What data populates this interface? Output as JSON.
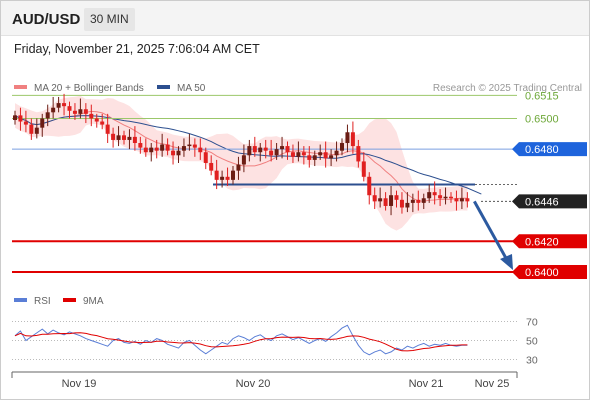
{
  "header": {
    "symbol": "AUD/USD",
    "timeframe": "30 MIN",
    "timestamp": "Friday, November 21, 2025 7:06:04 AM CET"
  },
  "colors": {
    "up": "#6b1d14",
    "down": "#e02020",
    "bollinger_line": "#f08080",
    "bollinger_fill": "#fde2e2",
    "ma50": "#2c4f8f",
    "resistance": "#9bc76a",
    "pivot_line": "#7a9fe0",
    "pivot_label": "#1e64dc",
    "support": "#e00000",
    "current": "#222222",
    "arrow": "#2c5aa0",
    "rsi": "#5a7ed6",
    "rsi_ma": "#e00000"
  },
  "chart_data": {
    "type": "candlestick",
    "legend": [
      {
        "name": "MA 20 + Bollinger Bands",
        "color": "#f08080"
      },
      {
        "name": "MA 50",
        "color": "#2c4f8f"
      }
    ],
    "credit": "Research © 2025 Trading Central",
    "y_range": [
      0.6385,
      0.6527
    ],
    "x_labels": [
      "Nov 19",
      "Nov 20",
      "Nov 21",
      "Nov 25"
    ],
    "price_levels": [
      {
        "value": 0.6515,
        "label": "0.6515",
        "kind": "resistance"
      },
      {
        "value": 0.65,
        "label": "0.6500",
        "kind": "resistance"
      },
      {
        "value": 0.648,
        "label": "0.6480",
        "kind": "pivot"
      },
      {
        "value": 0.6446,
        "label": "0.6446",
        "kind": "current"
      },
      {
        "value": 0.642,
        "label": "0.6420",
        "kind": "support"
      },
      {
        "value": 0.64,
        "label": "0.6400",
        "kind": "support"
      }
    ],
    "pivot_segment_value": 0.6457,
    "candles_close": [
      0.6502,
      0.6498,
      0.6496,
      0.649,
      0.6494,
      0.65,
      0.6504,
      0.6507,
      0.651,
      0.6508,
      0.6505,
      0.6503,
      0.6506,
      0.6503,
      0.65,
      0.6498,
      0.6496,
      0.649,
      0.6486,
      0.6489,
      0.6486,
      0.6488,
      0.6484,
      0.6481,
      0.6478,
      0.6481,
      0.6479,
      0.6483,
      0.6479,
      0.6476,
      0.6479,
      0.6482,
      0.6483,
      0.6481,
      0.6478,
      0.6471,
      0.6466,
      0.646,
      0.6462,
      0.646,
      0.6466,
      0.647,
      0.6476,
      0.6482,
      0.6478,
      0.6481,
      0.6479,
      0.6476,
      0.648,
      0.6482,
      0.6478,
      0.6475,
      0.6478,
      0.6476,
      0.6473,
      0.6476,
      0.6478,
      0.6474,
      0.6476,
      0.6479,
      0.6484,
      0.6491,
      0.6482,
      0.6472,
      0.6462,
      0.645,
      0.6446,
      0.6448,
      0.6443,
      0.645,
      0.6447,
      0.6442,
      0.6445,
      0.6447,
      0.6445,
      0.6448,
      0.6452,
      0.645,
      0.6448,
      0.6449,
      0.6448,
      0.6446,
      0.6448,
      0.6446
    ],
    "rsi_levels": [
      70,
      50,
      30
    ],
    "rsi_legend": [
      {
        "name": "RSI",
        "color": "#5a7ed6"
      },
      {
        "name": "9MA",
        "color": "#e00000"
      }
    ],
    "rsi_values": [
      55,
      60,
      50,
      54,
      58,
      62,
      57,
      61,
      58,
      56,
      59,
      57,
      55,
      52,
      50,
      48,
      46,
      44,
      50,
      52,
      48,
      47,
      49,
      46,
      50,
      48,
      52,
      50,
      46,
      44,
      42,
      48,
      50,
      45,
      40,
      36,
      40,
      44,
      48,
      46,
      52,
      55,
      53,
      50,
      54,
      56,
      52,
      50,
      55,
      57,
      54,
      51,
      53,
      50,
      47,
      50,
      52,
      49,
      54,
      58,
      63,
      66,
      55,
      45,
      38,
      35,
      38,
      40,
      36,
      38,
      42,
      40,
      44,
      42,
      45,
      47,
      44,
      46,
      45,
      47,
      45,
      44,
      45,
      45
    ]
  }
}
